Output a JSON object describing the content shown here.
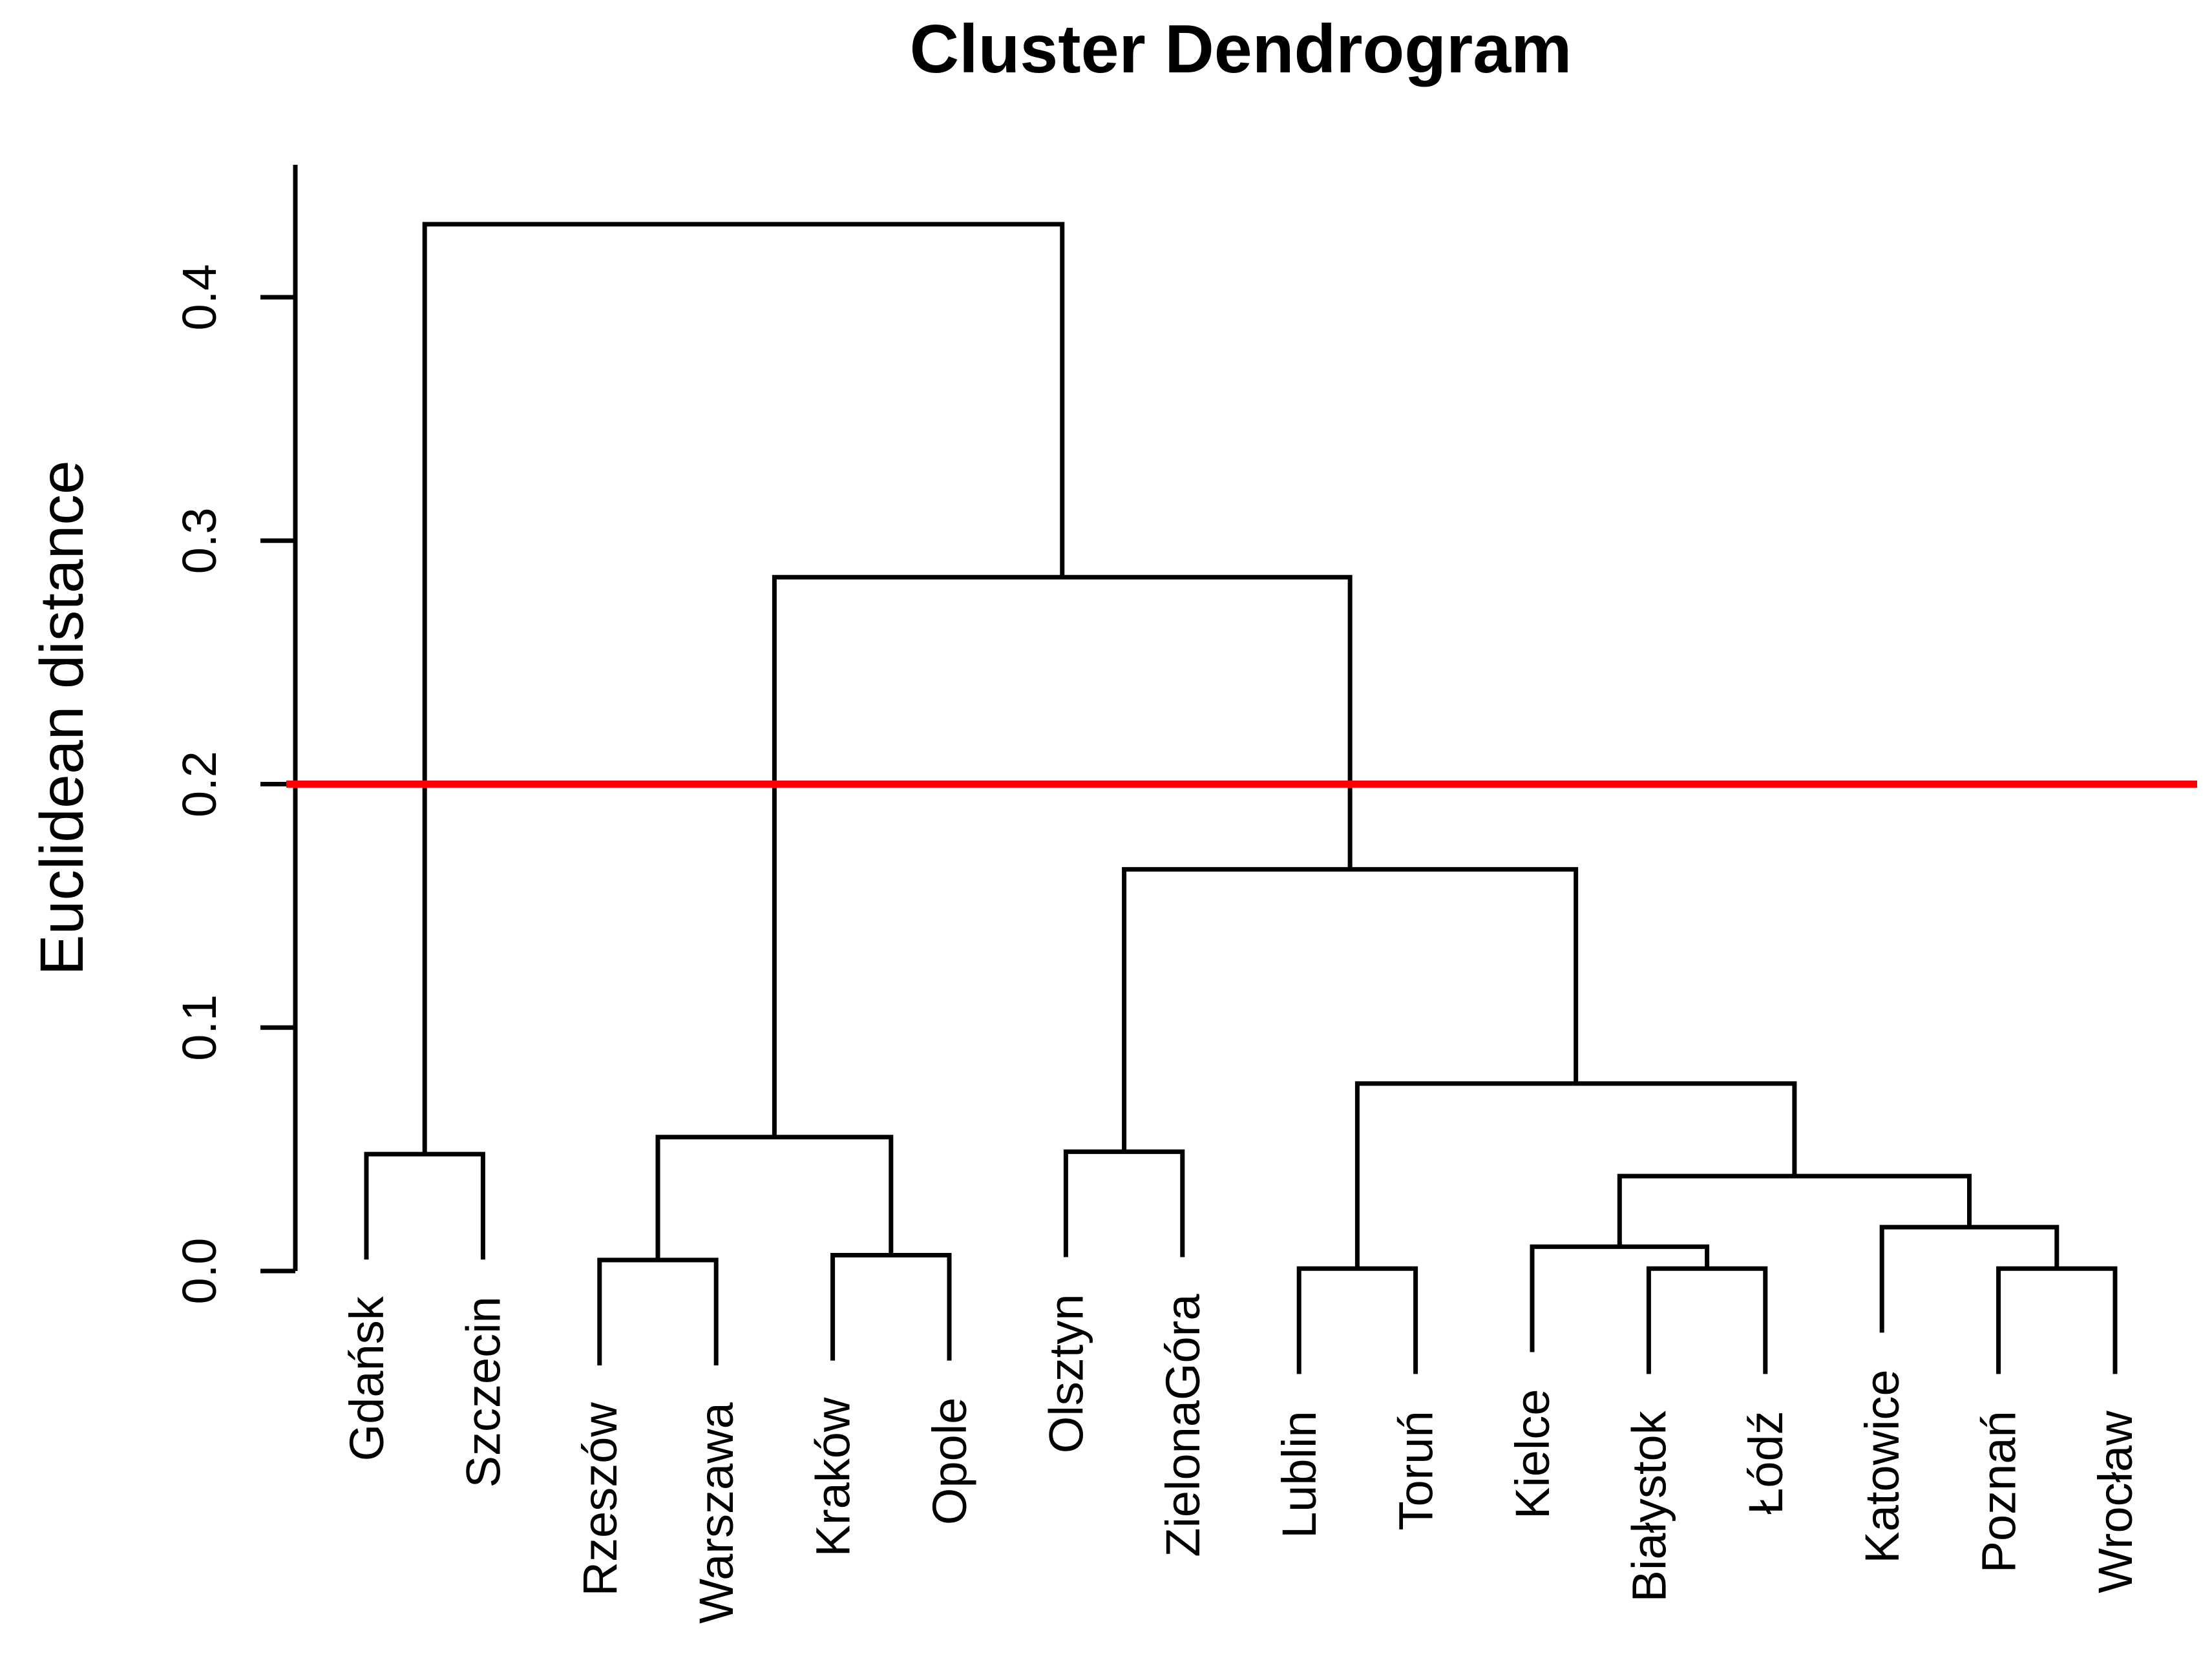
{
  "figure": {
    "title": "Cluster Dendrogram",
    "background": "#ffffff",
    "line_color": "#000000",
    "y_axis": {
      "label": "Euclidean distance",
      "ticks": [
        "0.0",
        "0.1",
        "0.2",
        "0.3",
        "0.4"
      ],
      "tick_values": [
        0.0,
        0.1,
        0.2,
        0.3,
        0.4
      ]
    },
    "threshold_line": {
      "value": 0.2,
      "color": "#ff0000"
    }
  },
  "chart_data": {
    "type": "dendrogram",
    "title": "Cluster Dendrogram",
    "ylabel": "Euclidean distance",
    "ylim": [
      0,
      0.455
    ],
    "yticks": [
      0.0,
      0.1,
      0.2,
      0.3,
      0.4
    ],
    "grid": false,
    "hang": 0.0433,
    "threshold_line": {
      "y": 0.2,
      "color": "#ff0000"
    },
    "leaves_in_order": [
      "Gdańsk",
      "Szczecin",
      "Rzeszów",
      "Warszawa",
      "Kraków",
      "Opole",
      "Olsztyn",
      "ZielonaGóra",
      "Lublin",
      "Toruń",
      "Kielce",
      "Białystok",
      "Łódź",
      "Katowice",
      "Poznań",
      "Wrocław"
    ],
    "tree": {
      "height": 0.43,
      "children": [
        {
          "height": 0.048,
          "children": [
            {
              "name": "Gdańsk"
            },
            {
              "name": "Szczecin"
            }
          ]
        },
        {
          "height": 0.285,
          "children": [
            {
              "height": 0.055,
              "children": [
                {
                  "height": 0.0045,
                  "children": [
                    {
                      "name": "Rzeszów"
                    },
                    {
                      "name": "Warszawa"
                    }
                  ]
                },
                {
                  "height": 0.0065,
                  "children": [
                    {
                      "name": "Kraków"
                    },
                    {
                      "name": "Opole"
                    }
                  ]
                }
              ]
            },
            {
              "height": 0.165,
              "children": [
                {
                  "height": 0.049,
                  "children": [
                    {
                      "name": "Olsztyn"
                    },
                    {
                      "name": "ZielonaGóra"
                    }
                  ]
                },
                {
                  "height": 0.077,
                  "children": [
                    {
                      "height": 0.001,
                      "children": [
                        {
                          "name": "Lublin"
                        },
                        {
                          "name": "Toruń"
                        }
                      ]
                    },
                    {
                      "height": 0.039,
                      "children": [
                        {
                          "height": 0.01,
                          "children": [
                            {
                              "name": "Kielce"
                            },
                            {
                              "height": 0.001,
                              "children": [
                                {
                                  "name": "Białystok"
                                },
                                {
                                  "name": "Łódź"
                                }
                              ]
                            }
                          ]
                        },
                        {
                          "height": 0.018,
                          "children": [
                            {
                              "name": "Katowice"
                            },
                            {
                              "height": 0.001,
                              "children": [
                                {
                                  "name": "Poznań"
                                },
                                {
                                  "name": "Wrocław"
                                }
                              ]
                            }
                          ]
                        }
                      ]
                    }
                  ]
                }
              ]
            }
          ]
        }
      ]
    }
  }
}
